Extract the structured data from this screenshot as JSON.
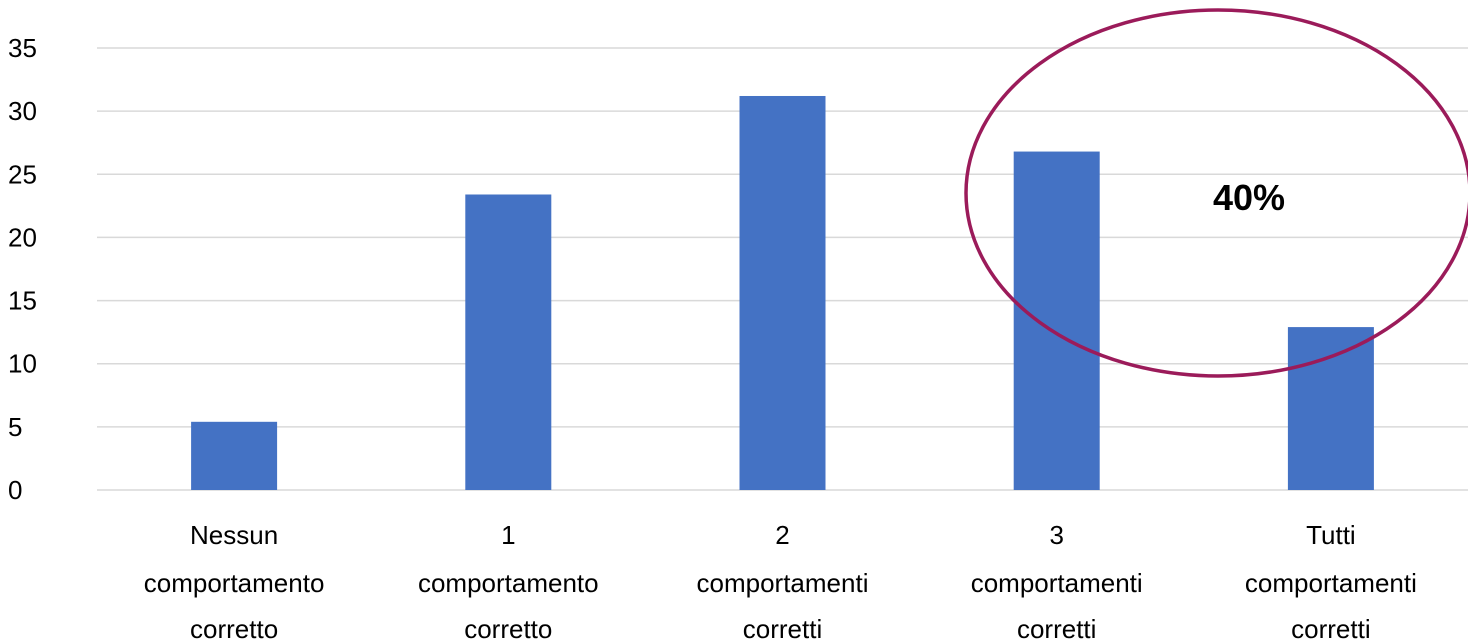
{
  "chart_data": {
    "type": "bar",
    "categories": [
      [
        "Nessun",
        "comportamento",
        "corretto"
      ],
      [
        "1",
        "comportamento",
        "corretto"
      ],
      [
        "2",
        "comportamenti",
        "corretti"
      ],
      [
        "3",
        "comportamenti",
        "corretti"
      ],
      [
        "Tutti",
        "comportamenti",
        "corretti"
      ]
    ],
    "values": [
      5.4,
      23.4,
      31.2,
      26.8,
      12.9
    ],
    "ylim": [
      0,
      35
    ],
    "yticks": [
      0,
      5,
      10,
      15,
      20,
      25,
      30,
      35
    ],
    "grid": true,
    "legend": "none",
    "bar_color": "#4472C4",
    "gridline_color": "#D9D9D9",
    "annotation": {
      "text": "40%",
      "shape": "ellipse",
      "color": "#9B1B5A",
      "spans_categories": [
        3,
        4
      ]
    }
  }
}
